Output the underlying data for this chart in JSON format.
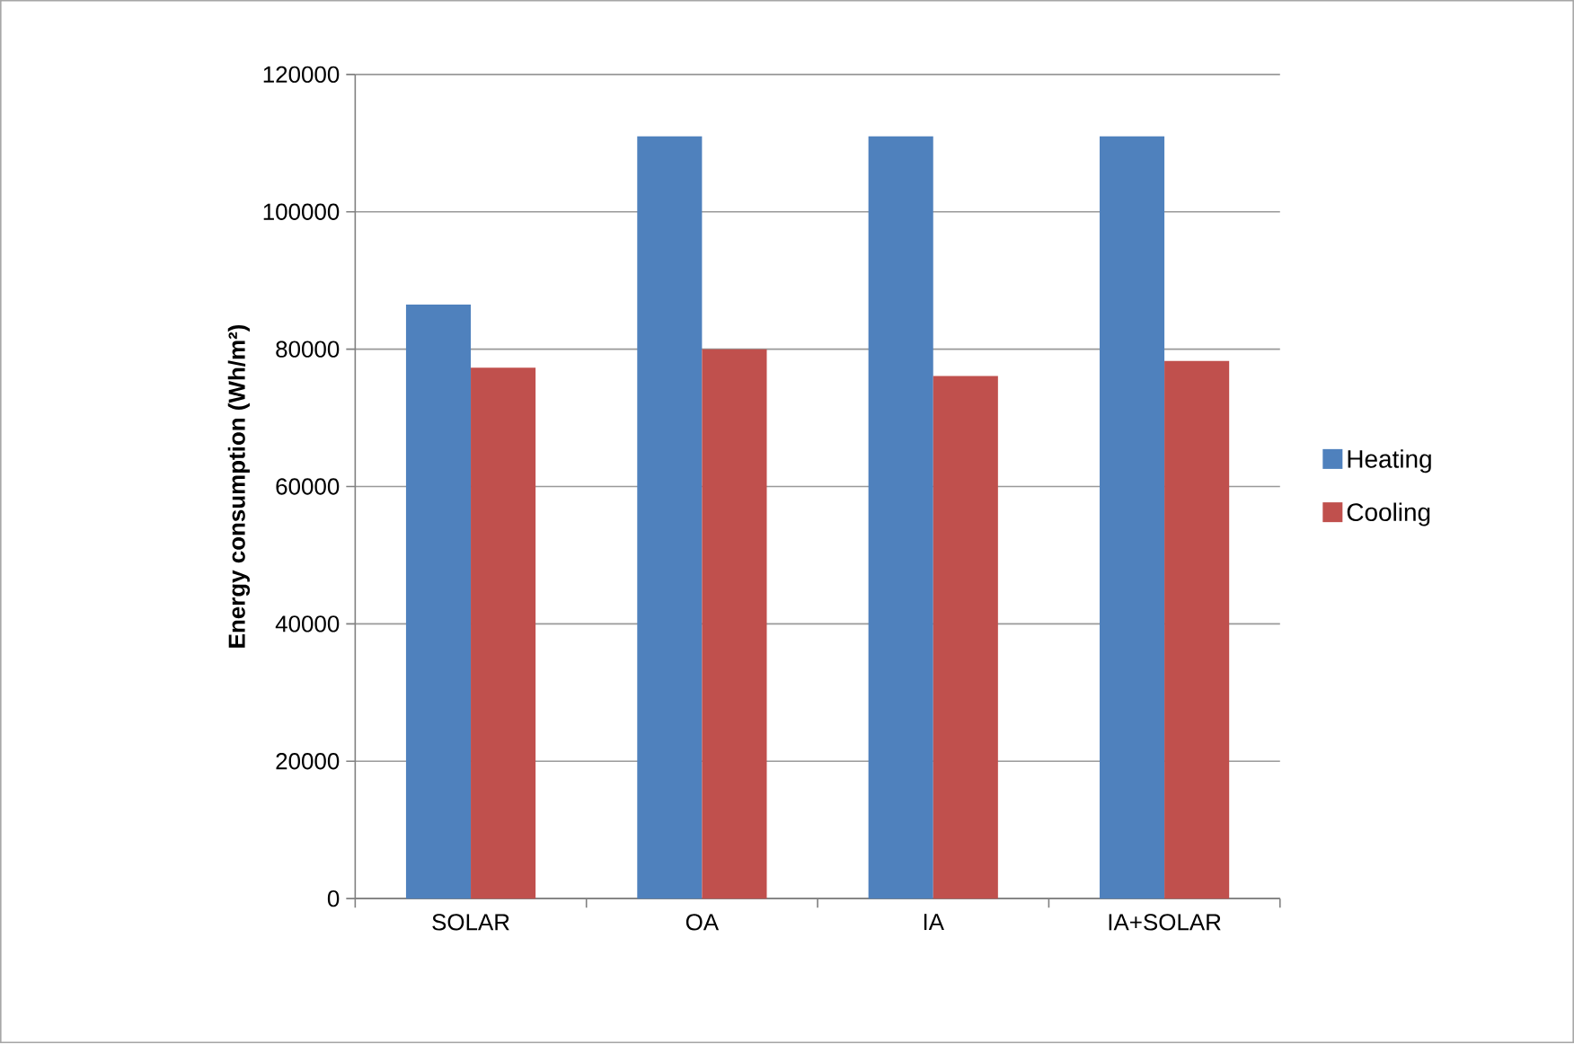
{
  "chart_data": {
    "type": "bar",
    "ylabel": "Energy consumption (Wh/m²)",
    "categories": [
      "SOLAR",
      "OA",
      "IA",
      "IA+SOLAR"
    ],
    "series": [
      {
        "name": "Heating",
        "color": "#4f81bd",
        "values": [
          86500,
          111000,
          111000,
          111000
        ]
      },
      {
        "name": "Cooling",
        "color": "#c0504d",
        "values": [
          77300,
          80000,
          76100,
          78300
        ]
      }
    ],
    "ylim": [
      0,
      120000
    ],
    "yticks": [
      0,
      20000,
      40000,
      60000,
      80000,
      100000,
      120000
    ],
    "grid": "y",
    "legend": "right"
  }
}
